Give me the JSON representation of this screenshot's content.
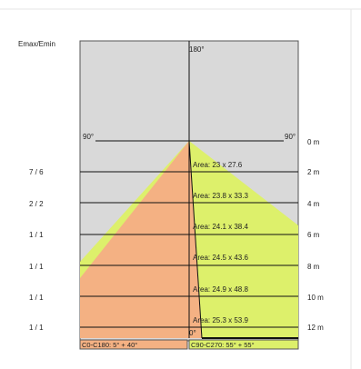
{
  "diagram": {
    "ratio_header": "Emax/Emin",
    "top_angle": "180°",
    "left_angle": "90°",
    "right_angle": "90°",
    "bottom_angle": "0°",
    "legend_left": "C0-C180: 5° + 40°",
    "legend_right": "C90-C270: 55° + 55°",
    "colors": {
      "background": "#d9d9d9",
      "orange": "#f4b183",
      "yellow": "#ddf06b",
      "line": "#111111"
    },
    "rows": [
      {
        "distance": "0 m",
        "ratio": "",
        "area": ""
      },
      {
        "distance": "2 m",
        "ratio": "7 / 6",
        "area": "Area: 23 x 27.6"
      },
      {
        "distance": "4 m",
        "ratio": "2 / 2",
        "area": "Area: 23.8 x 33.3"
      },
      {
        "distance": "6 m",
        "ratio": "1 / 1",
        "area": "Area: 24.1 x 38.4"
      },
      {
        "distance": "8 m",
        "ratio": "1 / 1",
        "area": "Area: 24.5 x 43.6"
      },
      {
        "distance": "10 m",
        "ratio": "1 / 1",
        "area": "Area: 24.9 x 48.8"
      },
      {
        "distance": "12 m",
        "ratio": "1 / 1",
        "area": "Area: 25.3 x 53.9"
      }
    ]
  }
}
